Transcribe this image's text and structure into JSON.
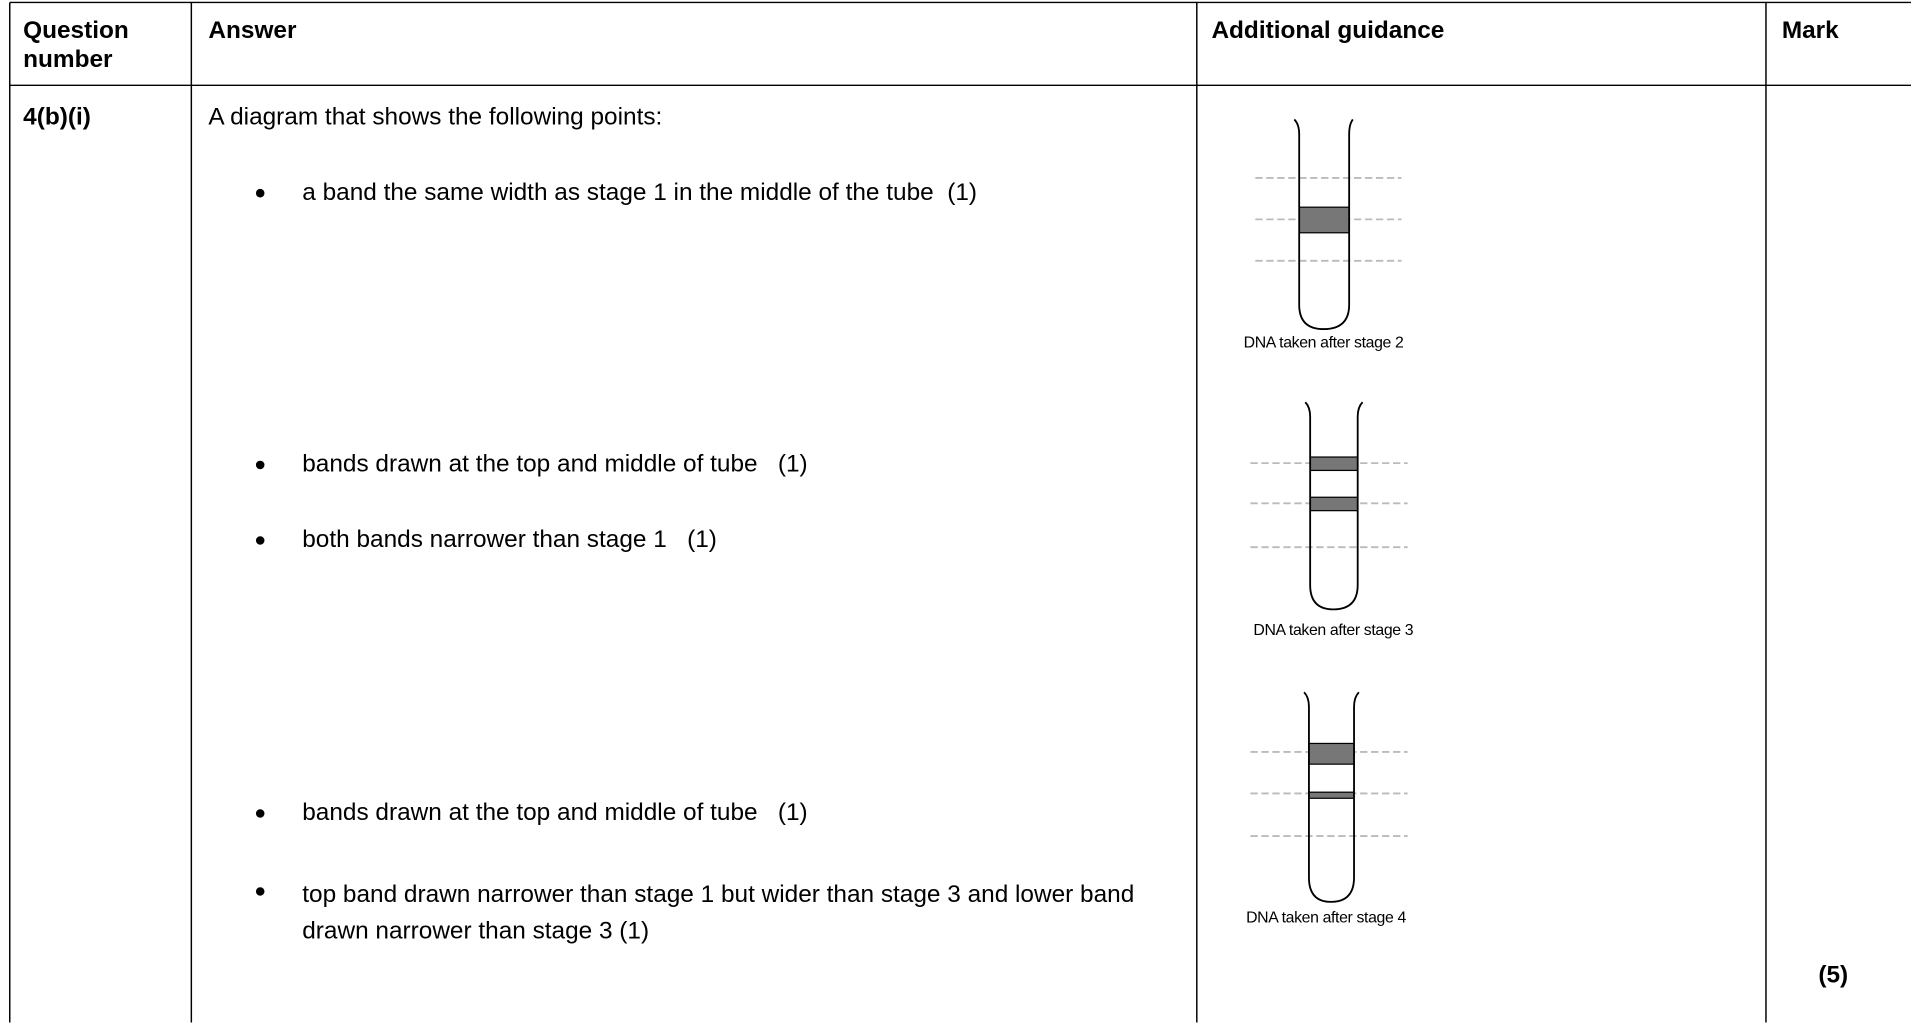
{
  "table": {
    "header": [
      "Question number",
      "Answer",
      "Additional guidance",
      "Mark"
    ],
    "rows": [
      {
        "question": "4(b)(i)",
        "answer": {
          "intro": "A diagram that shows the following points:",
          "points": [
            "a band the same width as stage 1 in the middle of the tube  (1)",
            "bands drawn at the top and middle of tube   (1)",
            "both bands narrower than stage 1   (1)",
            "bands drawn at the top and middle of tube   (1)",
            "top band drawn narrower than stage 1 but wider than stage 3 and lower band drawn narrower than stage 3   (1)"
          ]
        },
        "guidance": [
          "DNA taken after stage 2",
          "DNA taken after stage 3",
          "DNA taken after stage 4"
        ],
        "mark": "(5)"
      }
    ]
  }
}
